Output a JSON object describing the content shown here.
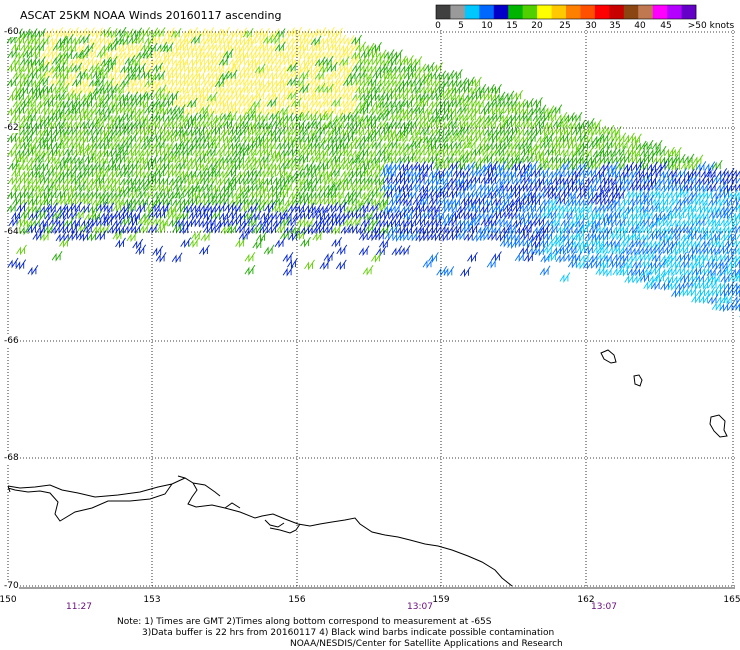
{
  "title": "ASCAT 25KM NOAA Winds 20160117 ascending",
  "scale": {
    "colors": [
      "#404040",
      "#9a9a9a",
      "#00c8ff",
      "#0068ff",
      "#0000c8",
      "#00b400",
      "#50d000",
      "#ffff00",
      "#ffc800",
      "#ff8000",
      "#ff5000",
      "#ff0000",
      "#c80000",
      "#8b4513",
      "#c07850",
      "#ff00ff",
      "#b400ff",
      "#6400c8"
    ],
    "labels": [
      "0",
      "5",
      "10",
      "15",
      "20",
      "25",
      "30",
      "35",
      "40",
      "45",
      ">50 knots"
    ]
  },
  "axes": {
    "lat_labels": [
      "-60",
      "-62",
      "-64",
      "-66",
      "-68",
      "-70"
    ],
    "lon_labels": [
      "150",
      "153",
      "156",
      "159",
      "162",
      "165"
    ]
  },
  "times": [
    "11:27",
    "13:07",
    "13:07"
  ],
  "notes": [
    "Note: 1) Times are GMT 2)Times along bottom correspond to measurement at -65S",
    "3)Data buffer is 22 hrs from 20160117 4) Black wind barbs indicate possible contamination",
    "NOAA/NESDIS/Center for Satellite Applications and Research"
  ],
  "legend_colors": {
    "yellow_barbs": "#ffee44",
    "green_barbs": "#1eaa00",
    "light_green_barbs": "#5fd000",
    "blue_barbs": "#0022cc",
    "mid_blue_barbs": "#0070ff",
    "cyan_barbs": "#00c8ff",
    "coastline": "#000000"
  }
}
